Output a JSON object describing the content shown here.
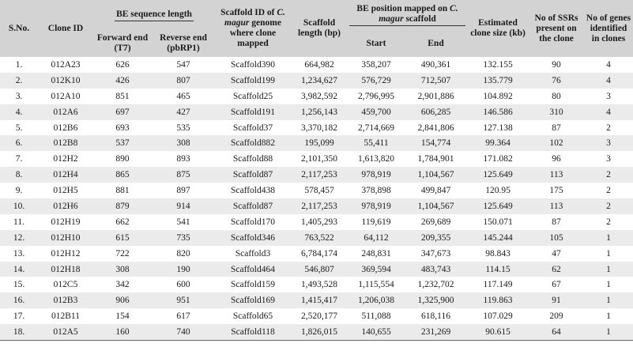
{
  "headers": {
    "sno": "S.No.",
    "clone_id": "Clone ID",
    "be_seq": "BE sequence length",
    "forward": "Forward end (T7)",
    "reverse": "Reverse end (pbRP1)",
    "scaffold_id_pre": "Scaffold ID of ",
    "scaffold_id_species": "C. magur",
    "scaffold_id_post": " genome where clone mapped",
    "scaffold_length": "Scaffold length (bp)",
    "be_pos_pre": "BE position mapped on ",
    "be_pos_species": "C. magur",
    "be_pos_post": " scaffold",
    "start": "Start",
    "end": "End",
    "clone_size": "Estimated clone size (kb)",
    "ssrs": "No of SSRs present on the clone",
    "genes": "No of genes identified in clones"
  },
  "rows": [
    {
      "sno": "1.",
      "clone": "012A23",
      "fwd": "626",
      "rev": "547",
      "scaffold": "Scaffold390",
      "len": "664,982",
      "start": "358,207",
      "end": "490,361",
      "size": "132.155",
      "ssr": "90",
      "genes": "4"
    },
    {
      "sno": "2.",
      "clone": "012K10",
      "fwd": "426",
      "rev": "807",
      "scaffold": "Scaffold199",
      "len": "1,234,627",
      "start": "576,729",
      "end": "712,507",
      "size": "135.779",
      "ssr": "76",
      "genes": "4"
    },
    {
      "sno": "3.",
      "clone": "012A10",
      "fwd": "851",
      "rev": "465",
      "scaffold": "Scaffold25",
      "len": "3,982,592",
      "start": "2,796,995",
      "end": "2,901,886",
      "size": "104.892",
      "ssr": "80",
      "genes": "3"
    },
    {
      "sno": "4.",
      "clone": "012A6",
      "fwd": "697",
      "rev": "427",
      "scaffold": "Scaffold191",
      "len": "1,256,143",
      "start": "459,700",
      "end": "606,285",
      "size": "146.586",
      "ssr": "310",
      "genes": "4"
    },
    {
      "sno": "5.",
      "clone": "012B6",
      "fwd": "693",
      "rev": "535",
      "scaffold": "Scaffold37",
      "len": "3,370,182",
      "start": "2,714,669",
      "end": "2,841,806",
      "size": "127.138",
      "ssr": "87",
      "genes": "2"
    },
    {
      "sno": "6.",
      "clone": "012B8",
      "fwd": "537",
      "rev": "308",
      "scaffold": "Scaffold882",
      "len": "195,099",
      "start": "55,411",
      "end": "154,774",
      "size": "99.364",
      "ssr": "102",
      "genes": "3"
    },
    {
      "sno": "7.",
      "clone": "012H2",
      "fwd": "890",
      "rev": "893",
      "scaffold": "Scaffold88",
      "len": "2,101,350",
      "start": "1,613,820",
      "end": "1,784,901",
      "size": "171.082",
      "ssr": "96",
      "genes": "3"
    },
    {
      "sno": "8.",
      "clone": "012H4",
      "fwd": "865",
      "rev": "875",
      "scaffold": "Scaffold87",
      "len": "2,117,253",
      "start": "978,919",
      "end": "1,104,567",
      "size": "125.649",
      "ssr": "113",
      "genes": "2"
    },
    {
      "sno": "9.",
      "clone": "012H5",
      "fwd": "881",
      "rev": "897",
      "scaffold": "Scaffold438",
      "len": "578,457",
      "start": "378,898",
      "end": "499,847",
      "size": "120.95",
      "ssr": "175",
      "genes": "2"
    },
    {
      "sno": "10.",
      "clone": "012H6",
      "fwd": "879",
      "rev": "914",
      "scaffold": "Scaffold87",
      "len": "2,117,253",
      "start": "978,919",
      "end": "1,104,567",
      "size": "125.649",
      "ssr": "113",
      "genes": "2"
    },
    {
      "sno": "11.",
      "clone": "012H19",
      "fwd": "662",
      "rev": "541",
      "scaffold": "Scaffold170",
      "len": "1,405,293",
      "start": "119,619",
      "end": "269,689",
      "size": "150.071",
      "ssr": "87",
      "genes": "2"
    },
    {
      "sno": "12.",
      "clone": "012H10",
      "fwd": "615",
      "rev": "735",
      "scaffold": "Scaffold346",
      "len": "763,522",
      "start": "64,112",
      "end": "209,355",
      "size": "145.244",
      "ssr": "105",
      "genes": "1"
    },
    {
      "sno": "13.",
      "clone": "012H12",
      "fwd": "722",
      "rev": "820",
      "scaffold": "Scaffold3",
      "len": "6,784,174",
      "start": "248,831",
      "end": "347,673",
      "size": "98.843",
      "ssr": "47",
      "genes": "1"
    },
    {
      "sno": "14.",
      "clone": "012H18",
      "fwd": "308",
      "rev": "190",
      "scaffold": "Scaffold464",
      "len": "546,807",
      "start": "369,594",
      "end": "483,743",
      "size": "114.15",
      "ssr": "62",
      "genes": "1"
    },
    {
      "sno": "15.",
      "clone": "012C5",
      "fwd": "342",
      "rev": "600",
      "scaffold": "Scaffold159",
      "len": "1,493,528",
      "start": "1,115,554",
      "end": "1,232,702",
      "size": "117.149",
      "ssr": "67",
      "genes": "1"
    },
    {
      "sno": "16.",
      "clone": "012B3",
      "fwd": "906",
      "rev": "951",
      "scaffold": "Scaffold169",
      "len": "1,415,417",
      "start": "1,206,038",
      "end": "1,325,900",
      "size": "119.863",
      "ssr": "91",
      "genes": "1"
    },
    {
      "sno": "17.",
      "clone": "012B11",
      "fwd": "154",
      "rev": "617",
      "scaffold": "Scaffold65",
      "len": "2,520,177",
      "start": "511,088",
      "end": "618,116",
      "size": "107.029",
      "ssr": "209",
      "genes": "1"
    },
    {
      "sno": "18.",
      "clone": "012A5",
      "fwd": "160",
      "rev": "740",
      "scaffold": "Scaffold118",
      "len": "1,826,015",
      "start": "140,655",
      "end": "231,269",
      "size": "90.615",
      "ssr": "64",
      "genes": "1"
    }
  ]
}
